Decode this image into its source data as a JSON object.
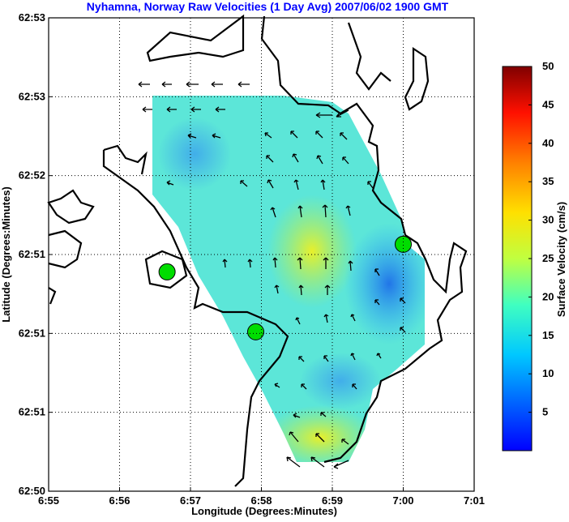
{
  "chart_data": {
    "type": "heatmap",
    "title": "Nyhamna, Norway Raw Velocities (1 Day Avg) 2007/06/02 1900 GMT",
    "xlabel": "Longitude (Degrees:Minutes)",
    "ylabel": "Latitude (Degrees:Minutes)",
    "xticks": [
      "6:55",
      "6:56",
      "6:57",
      "6:58",
      "6:59",
      "7:00",
      "7:01"
    ],
    "yticks": [
      "62:50",
      "62:51",
      "62:51",
      "62:51",
      "62:52",
      "62:53",
      "62:53"
    ],
    "grid": true,
    "colorbar": {
      "label": "Surface Velocity (cm/s)",
      "range": [
        0,
        50
      ],
      "ticks": [
        "5",
        "10",
        "15",
        "20",
        "25",
        "30",
        "35",
        "40",
        "45",
        "50"
      ],
      "colormap": "jet"
    },
    "sites": [
      {
        "x_index": 1.67,
        "y_index": 2.78
      },
      {
        "x_index": 2.92,
        "y_index": 2.02
      },
      {
        "x_index": 5.0,
        "y_index": 3.13
      }
    ]
  }
}
